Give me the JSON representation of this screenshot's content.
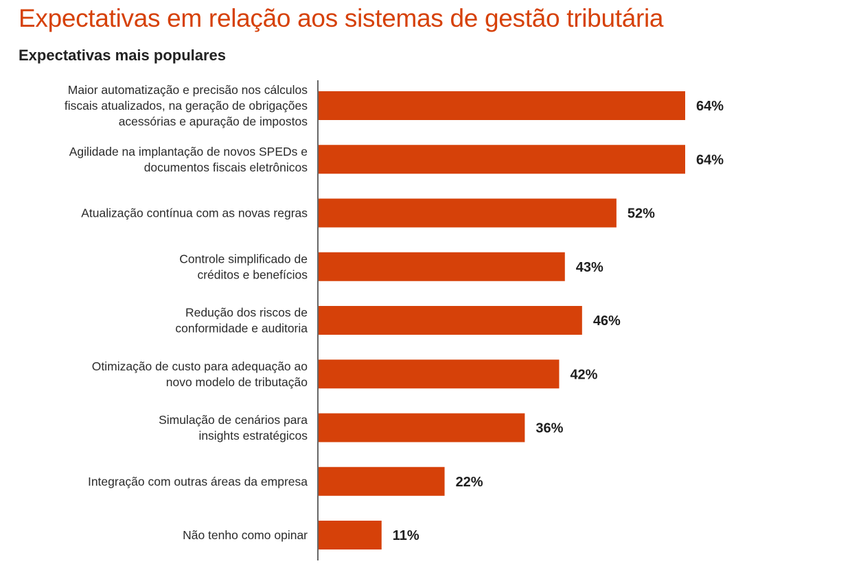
{
  "title": "Expectativas em relação aos sistemas de gestão tributária",
  "subtitle": "Expectativas mais populares",
  "colors": {
    "bar": "#d64109",
    "title": "#d64109",
    "axis": "#333333"
  },
  "chart_data": {
    "type": "bar",
    "orientation": "horizontal",
    "categories": [
      [
        "Maior automatização e precisão nos cálculos",
        "fiscais atualizados, na geração de obrigações",
        "acessórias e apuração de impostos"
      ],
      [
        "Agilidade na implantação de novos SPEDs e",
        "documentos fiscais eletrônicos"
      ],
      [
        "Atualização contínua com as novas regras"
      ],
      [
        "Controle simplificado de",
        "créditos e benefícios"
      ],
      [
        "Redução dos riscos de",
        "conformidade e auditoria"
      ],
      [
        "Otimização de custo para adequação ao",
        "novo modelo de tributação"
      ],
      [
        "Simulação de cenários para",
        "insights estratégicos"
      ],
      [
        "Integração com outras áreas da empresa"
      ],
      [
        "Não tenho como opinar"
      ]
    ],
    "values": [
      64,
      64,
      52,
      43,
      46,
      42,
      36,
      22,
      11
    ],
    "value_labels": [
      "64%",
      "64%",
      "52%",
      "43%",
      "46%",
      "42%",
      "36%",
      "22%",
      "11%"
    ],
    "unit": "%",
    "xlim": [
      0,
      64
    ],
    "grid": false,
    "legend": "none"
  }
}
